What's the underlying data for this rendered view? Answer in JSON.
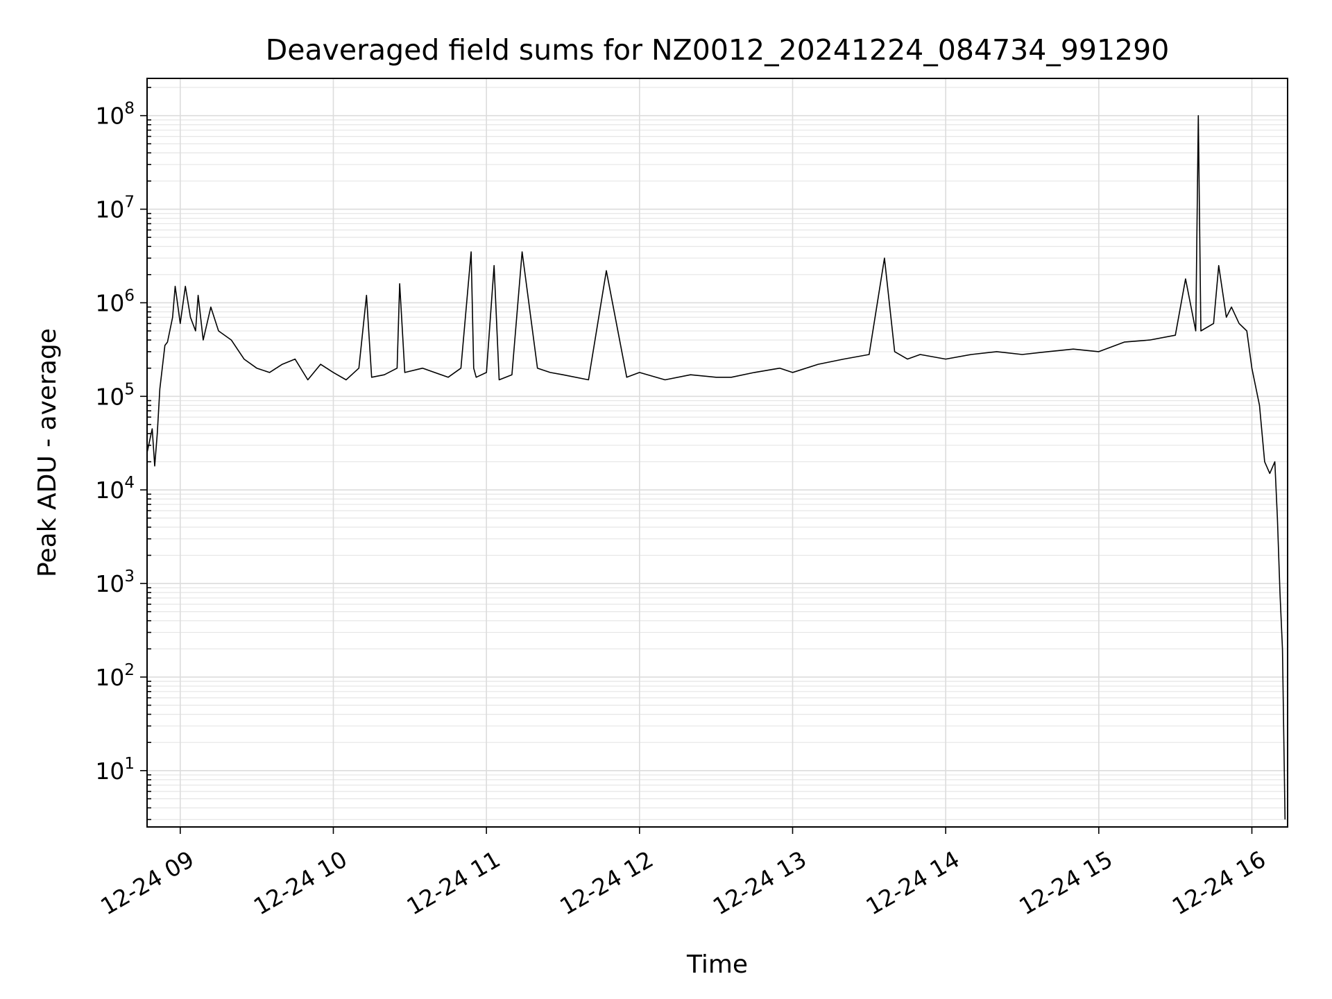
{
  "chart_data": {
    "type": "line",
    "title": "Deaveraged field sums for NZ0012_20241224_084734_991290",
    "xlabel": "Time",
    "ylabel": "Peak ADU - average",
    "yscale": "log",
    "ylim": [
      2.5,
      250000000
    ],
    "xlim": [
      "2024-12-24 08:47",
      "2024-12-24 16:14"
    ],
    "x_tick_labels": [
      "12-24 09",
      "12-24 10",
      "12-24 11",
      "12-24 12",
      "12-24 13",
      "12-24 14",
      "12-24 15",
      "12-24 16"
    ],
    "x_tick_times": [
      "2024-12-24 09:00",
      "2024-12-24 10:00",
      "2024-12-24 11:00",
      "2024-12-24 12:00",
      "2024-12-24 13:00",
      "2024-12-24 14:00",
      "2024-12-24 15:00",
      "2024-12-24 16:00"
    ],
    "y_ticks": [
      {
        "value": 10,
        "base": "10",
        "exp": "1"
      },
      {
        "value": 100,
        "base": "10",
        "exp": "2"
      },
      {
        "value": 1000,
        "base": "10",
        "exp": "3"
      },
      {
        "value": 10000,
        "base": "10",
        "exp": "4"
      },
      {
        "value": 100000,
        "base": "10",
        "exp": "5"
      },
      {
        "value": 1000000,
        "base": "10",
        "exp": "6"
      },
      {
        "value": 10000000,
        "base": "10",
        "exp": "7"
      },
      {
        "value": 100000000,
        "base": "10",
        "exp": "8"
      }
    ],
    "grid": "major and minor",
    "line_color": "#000000",
    "series": [
      {
        "x": [
          "2024-12-24 08:47",
          "2024-12-24 08:49",
          "2024-12-24 08:50",
          "2024-12-24 08:51",
          "2024-12-24 08:52",
          "2024-12-24 08:54",
          "2024-12-24 08:55",
          "2024-12-24 08:57",
          "2024-12-24 08:58",
          "2024-12-24 09:00",
          "2024-12-24 09:02",
          "2024-12-24 09:04",
          "2024-12-24 09:06",
          "2024-12-24 09:07",
          "2024-12-24 09:09",
          "2024-12-24 09:12",
          "2024-12-24 09:15",
          "2024-12-24 09:20",
          "2024-12-24 09:25",
          "2024-12-24 09:30",
          "2024-12-24 09:35",
          "2024-12-24 09:40",
          "2024-12-24 09:45",
          "2024-12-24 09:50",
          "2024-12-24 09:55",
          "2024-12-24 10:00",
          "2024-12-24 10:05",
          "2024-12-24 10:10",
          "2024-12-24 10:13",
          "2024-12-24 10:15",
          "2024-12-24 10:20",
          "2024-12-24 10:25",
          "2024-12-24 10:26",
          "2024-12-24 10:28",
          "2024-12-24 10:35",
          "2024-12-24 10:45",
          "2024-12-24 10:50",
          "2024-12-24 10:54",
          "2024-12-24 10:55",
          "2024-12-24 10:56",
          "2024-12-24 11:00",
          "2024-12-24 11:03",
          "2024-12-24 11:05",
          "2024-12-24 11:10",
          "2024-12-24 11:14",
          "2024-12-24 11:20",
          "2024-12-24 11:25",
          "2024-12-24 11:30",
          "2024-12-24 11:40",
          "2024-12-24 11:47",
          "2024-12-24 11:55",
          "2024-12-24 12:00",
          "2024-12-24 12:10",
          "2024-12-24 12:20",
          "2024-12-24 12:30",
          "2024-12-24 12:36",
          "2024-12-24 12:45",
          "2024-12-24 12:55",
          "2024-12-24 13:00",
          "2024-12-24 13:10",
          "2024-12-24 13:20",
          "2024-12-24 13:30",
          "2024-12-24 13:36",
          "2024-12-24 13:40",
          "2024-12-24 13:45",
          "2024-12-24 13:50",
          "2024-12-24 14:00",
          "2024-12-24 14:10",
          "2024-12-24 14:20",
          "2024-12-24 14:30",
          "2024-12-24 14:40",
          "2024-12-24 14:50",
          "2024-12-24 15:00",
          "2024-12-24 15:10",
          "2024-12-24 15:20",
          "2024-12-24 15:30",
          "2024-12-24 15:34",
          "2024-12-24 15:38",
          "2024-12-24 15:39",
          "2024-12-24 15:40",
          "2024-12-24 15:45",
          "2024-12-24 15:47",
          "2024-12-24 15:50",
          "2024-12-24 15:52",
          "2024-12-24 15:55",
          "2024-12-24 15:58",
          "2024-12-24 16:00",
          "2024-12-24 16:03",
          "2024-12-24 16:05",
          "2024-12-24 16:07",
          "2024-12-24 16:09",
          "2024-12-24 16:10",
          "2024-12-24 16:11",
          "2024-12-24 16:12",
          "2024-12-24 16:13"
        ],
        "y": [
          25000,
          45000,
          18000,
          40000,
          120000,
          350000,
          380000,
          700000,
          1500000,
          600000,
          1500000,
          700000,
          500000,
          1200000,
          400000,
          900000,
          500000,
          400000,
          250000,
          200000,
          180000,
          220000,
          250000,
          150000,
          220000,
          180000,
          150000,
          200000,
          1200000,
          160000,
          170000,
          200000,
          1600000,
          180000,
          200000,
          160000,
          200000,
          3500000,
          200000,
          160000,
          180000,
          2500000,
          150000,
          170000,
          3500000,
          200000,
          180000,
          170000,
          150000,
          2200000,
          160000,
          180000,
          150000,
          170000,
          160000,
          160000,
          180000,
          200000,
          180000,
          220000,
          250000,
          280000,
          3000000,
          300000,
          250000,
          280000,
          250000,
          280000,
          300000,
          280000,
          300000,
          320000,
          300000,
          380000,
          400000,
          450000,
          1800000,
          500000,
          100000000,
          500000,
          600000,
          2500000,
          700000,
          900000,
          600000,
          500000,
          200000,
          80000,
          20000,
          15000,
          20000,
          5000,
          800,
          200,
          3
        ]
      }
    ]
  }
}
